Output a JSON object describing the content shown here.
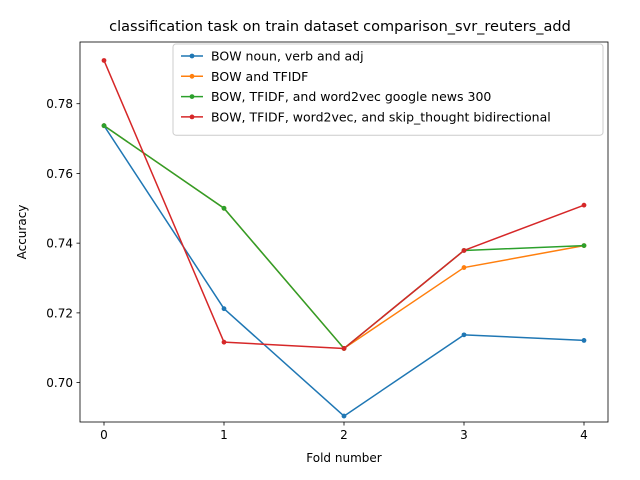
{
  "chart_data": {
    "type": "line",
    "title": "classification task on train dataset comparison_svr_reuters_add",
    "xlabel": "Fold number",
    "ylabel": "Accuracy",
    "x": [
      0,
      1,
      2,
      3,
      4
    ],
    "x_ticks": [
      0,
      1,
      2,
      3,
      4
    ],
    "x_tick_labels": [
      "0",
      "1",
      "2",
      "3",
      "4"
    ],
    "y_ticks": [
      0.7,
      0.72,
      0.74,
      0.76,
      0.78
    ],
    "y_tick_labels": [
      "0.70",
      "0.72",
      "0.74",
      "0.76",
      "0.78"
    ],
    "xlim": [
      -0.2,
      4.2
    ],
    "ylim": [
      0.6887,
      0.7977
    ],
    "grid": false,
    "legend_position": "top-right",
    "series": [
      {
        "name": "BOW noun, verb and adj",
        "color": "#1f77b4",
        "values": [
          0.7737,
          0.7212,
          0.6904,
          0.7137,
          0.7121
        ]
      },
      {
        "name": "BOW and TFIDF",
        "color": "#ff7f0e",
        "values": [
          0.7737,
          0.75,
          0.7098,
          0.733,
          0.7393
        ]
      },
      {
        "name": "BOW, TFIDF, and word2vec google news 300",
        "color": "#2ca02c",
        "values": [
          0.7737,
          0.75,
          0.7098,
          0.7379,
          0.7393
        ]
      },
      {
        "name": "BOW, TFIDF, word2vec, and skip_thought bidirectional",
        "color": "#d62728",
        "values": [
          0.7924,
          0.7116,
          0.7098,
          0.7379,
          0.7509
        ]
      }
    ]
  }
}
